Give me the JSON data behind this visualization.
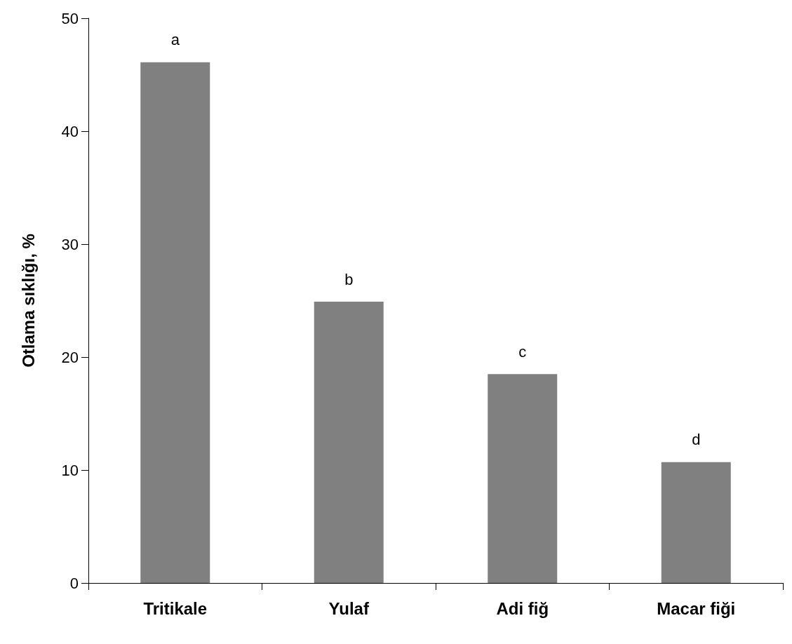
{
  "chart_data": {
    "type": "bar",
    "ylabel": "Otlama sıklığı, %",
    "categories": [
      "Tritikale",
      "Yulaf",
      "Adi fiğ",
      "Macar fiği"
    ],
    "values": [
      46.1,
      24.9,
      18.5,
      10.7
    ],
    "color": "#808080",
    "ylim": [
      0,
      50
    ],
    "yticks": [
      0,
      10,
      20,
      30,
      40,
      50
    ],
    "grid": false,
    "annotations": [
      {
        "text": "a",
        "x": "Tritikale",
        "y": 46.1
      },
      {
        "text": "b",
        "x": "Yulaf",
        "y": 24.9
      },
      {
        "text": "c",
        "x": "Adi fiğ",
        "y": 18.5
      },
      {
        "text": "d",
        "x": "Macar fiği",
        "y": 10.7
      }
    ]
  }
}
